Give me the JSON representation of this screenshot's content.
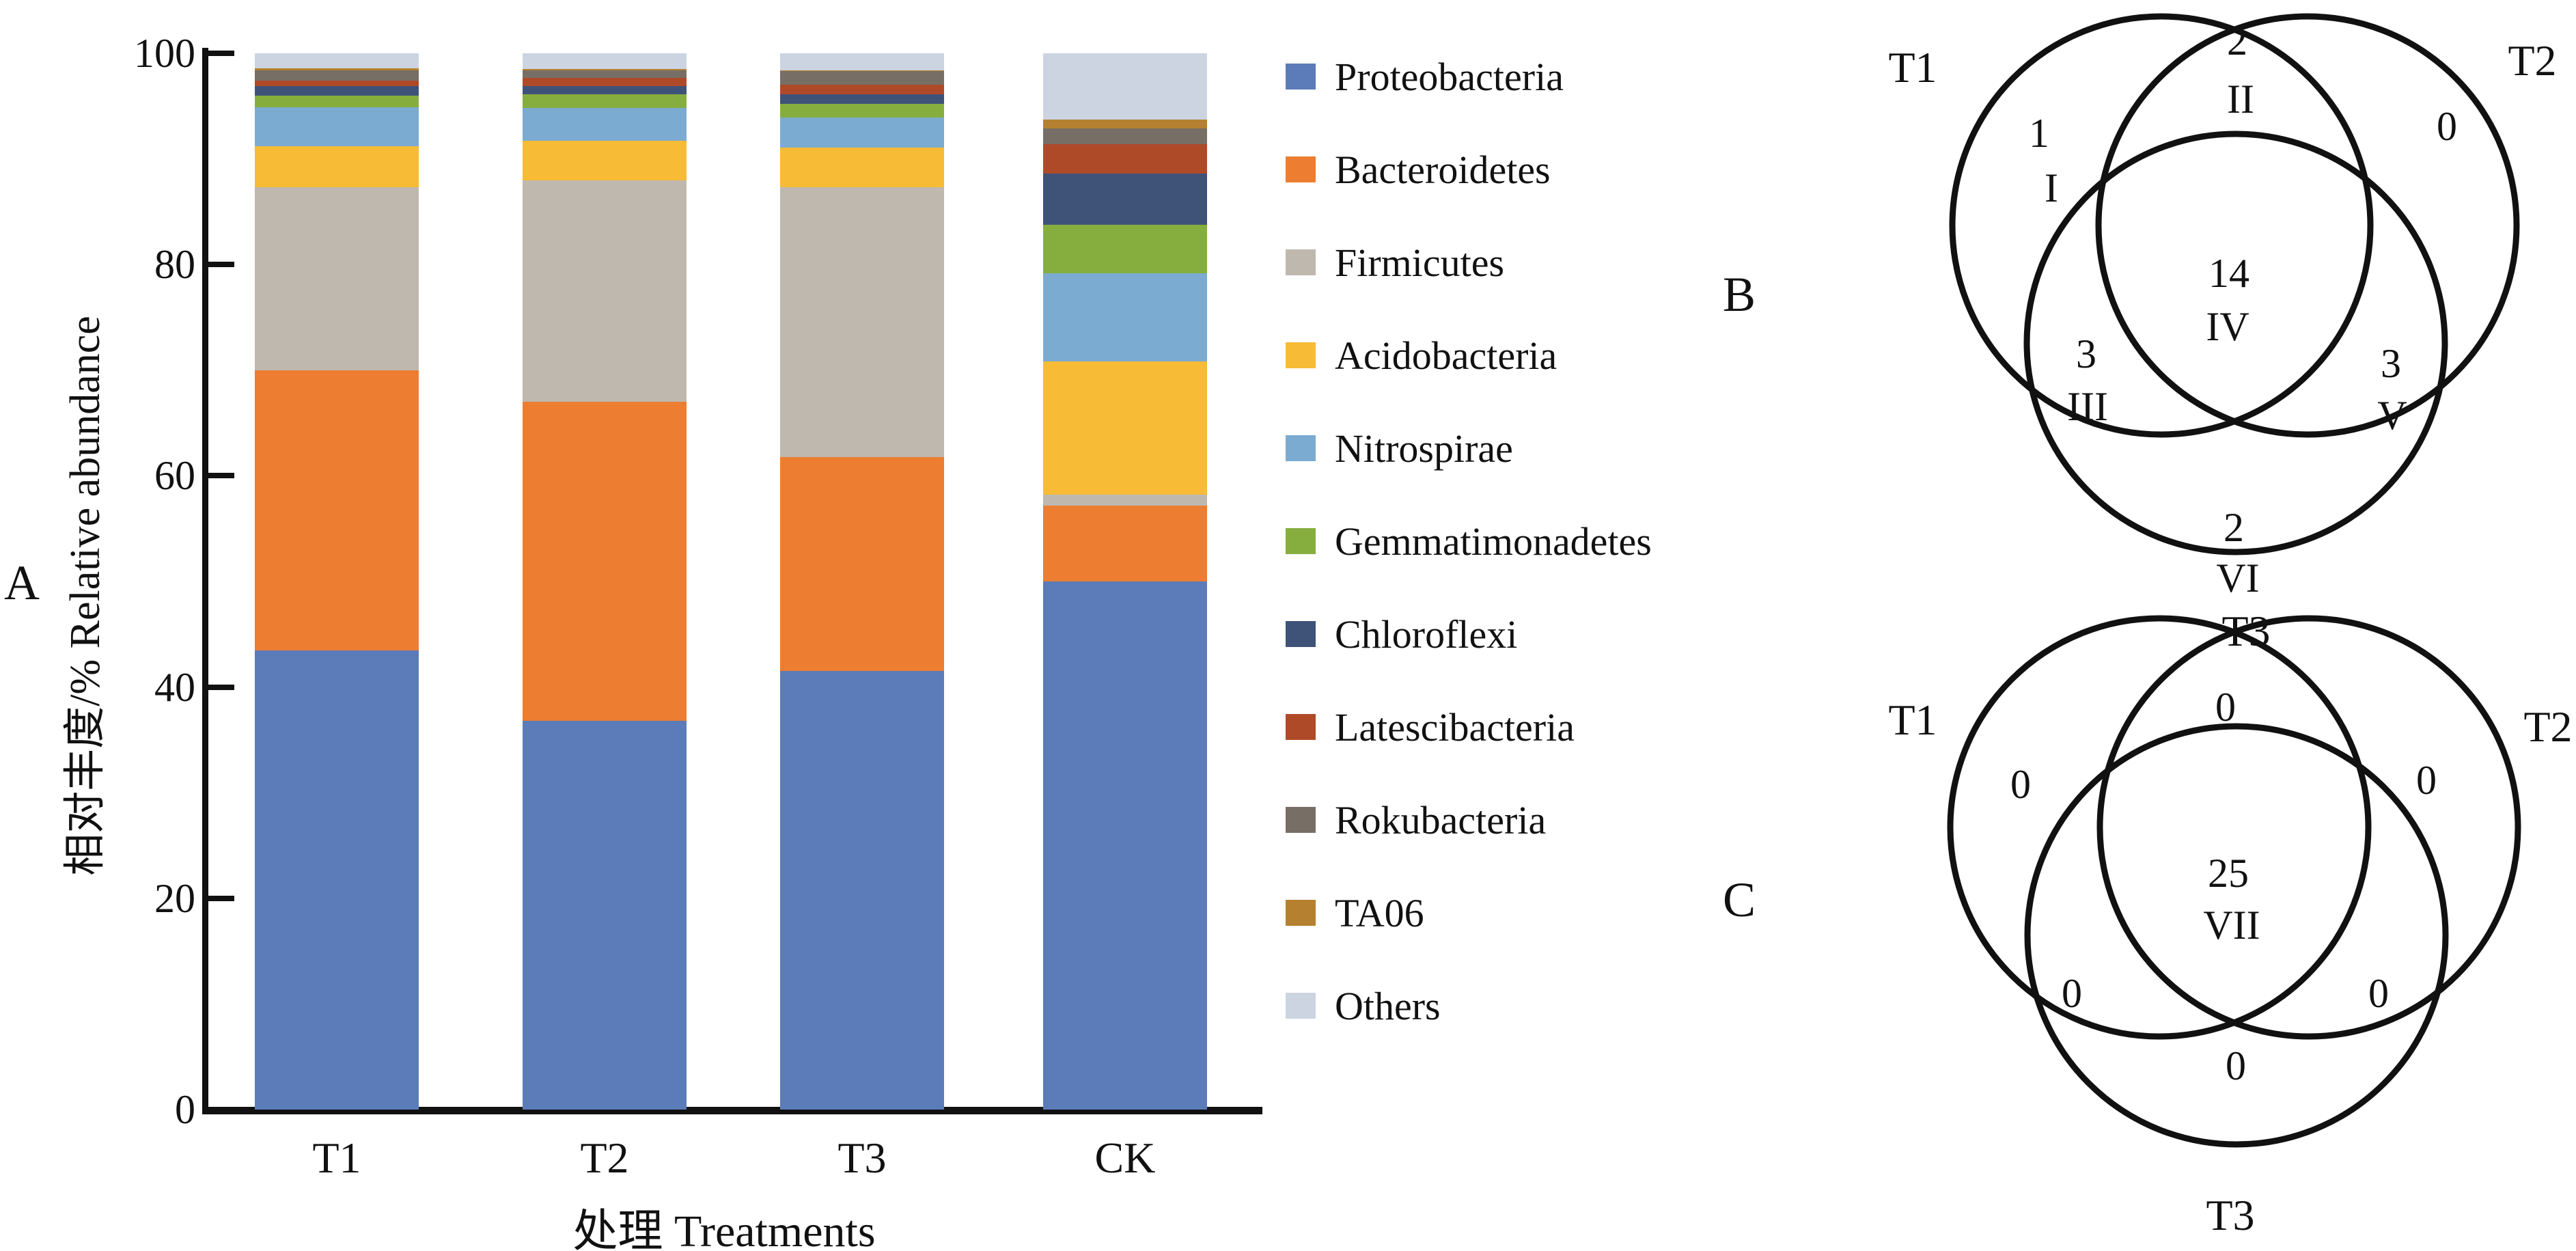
{
  "panels": {
    "a_label": "A",
    "b_label": "B",
    "c_label": "C"
  },
  "bar_chart": {
    "y_axis_label": "相对丰度/% Relative abundance",
    "x_axis_label": "处理 Treatments",
    "y_ticks": [
      0,
      20,
      40,
      60,
      80,
      100
    ],
    "categories": [
      "T1",
      "T2",
      "T3",
      "CK"
    ]
  },
  "legend": {
    "entries": [
      {
        "label": "Proteobacteria",
        "color": "#5b7cb8"
      },
      {
        "label": "Bacteroidetes",
        "color": "#ec7d31"
      },
      {
        "label": "Firmicutes",
        "color": "#bfb8af"
      },
      {
        "label": "Acidobacteria",
        "color": "#f7bb35"
      },
      {
        "label": "Nitrospirae",
        "color": "#7babd1"
      },
      {
        "label": "Gemmatimonadetes",
        "color": "#86ae3e"
      },
      {
        "label": "Chloroflexi",
        "color": "#3f5379"
      },
      {
        "label": "Latescibacteria",
        "color": "#af4a28"
      },
      {
        "label": "Rokubacteria",
        "color": "#776f66"
      },
      {
        "label": "TA06",
        "color": "#b5802f"
      },
      {
        "label": "Others",
        "color": "#ccd4e1"
      }
    ]
  },
  "chart_data": [
    {
      "id": "A",
      "type": "bar",
      "subtype": "stacked-percent",
      "title": "",
      "xlabel": "处理 Treatments",
      "ylabel": "相对丰度/% Relative abundance",
      "categories": [
        "T1",
        "T2",
        "T3",
        "CK"
      ],
      "ylim": [
        0,
        100
      ],
      "grid": false,
      "legend_position": "right",
      "series": [
        {
          "name": "Proteobacteria",
          "color": "#5b7cb8",
          "values": [
            43.5,
            36.8,
            41.5,
            50.0
          ]
        },
        {
          "name": "Bacteroidetes",
          "color": "#ec7d31",
          "values": [
            26.5,
            30.2,
            20.3,
            7.2
          ]
        },
        {
          "name": "Firmicutes",
          "color": "#bfb8af",
          "values": [
            17.3,
            21.0,
            25.5,
            1.0
          ]
        },
        {
          "name": "Acidobacteria",
          "color": "#f7bb35",
          "values": [
            3.9,
            3.7,
            3.8,
            12.6
          ]
        },
        {
          "name": "Nitrospirae",
          "color": "#7babd1",
          "values": [
            3.7,
            3.1,
            2.8,
            8.4
          ]
        },
        {
          "name": "Gemmatimonadetes",
          "color": "#86ae3e",
          "values": [
            1.1,
            1.3,
            1.3,
            4.6
          ]
        },
        {
          "name": "Chloroflexi",
          "color": "#3f5379",
          "values": [
            0.9,
            0.8,
            0.9,
            4.8
          ]
        },
        {
          "name": "Latescibacteria",
          "color": "#af4a28",
          "values": [
            0.5,
            0.8,
            0.9,
            2.8
          ]
        },
        {
          "name": "Rokubacteria",
          "color": "#776f66",
          "values": [
            1.0,
            0.7,
            1.3,
            1.5
          ]
        },
        {
          "name": "TA06",
          "color": "#b5802f",
          "values": [
            0.2,
            0.1,
            0.1,
            0.8
          ]
        },
        {
          "name": "Others",
          "color": "#ccd4e1",
          "values": [
            1.4,
            1.5,
            1.6,
            6.3
          ]
        }
      ]
    },
    {
      "id": "B",
      "type": "venn3",
      "sets": [
        "T1",
        "T2",
        "T3"
      ],
      "regions": {
        "t1_only": {
          "count": "1",
          "numeral": "I"
        },
        "t2_only": {
          "count": "0",
          "numeral": ""
        },
        "t3_only": {
          "count": "2",
          "numeral": "VI"
        },
        "t1_t2": {
          "count": "2",
          "numeral": "II"
        },
        "t1_t3": {
          "count": "3",
          "numeral": "III"
        },
        "t2_t3": {
          "count": "3",
          "numeral": "V"
        },
        "t1_t2_t3": {
          "count": "14",
          "numeral": "IV"
        }
      }
    },
    {
      "id": "C",
      "type": "venn3",
      "sets": [
        "T1",
        "T2",
        "T3"
      ],
      "regions": {
        "t1_only": {
          "count": "0",
          "numeral": ""
        },
        "t2_only": {
          "count": "0",
          "numeral": ""
        },
        "t3_only": {
          "count": "0",
          "numeral": ""
        },
        "t1_t2": {
          "count": "0",
          "numeral": ""
        },
        "t1_t3": {
          "count": "0",
          "numeral": ""
        },
        "t2_t3": {
          "count": "0",
          "numeral": ""
        },
        "t1_t2_t3": {
          "count": "25",
          "numeral": "VII"
        }
      }
    }
  ]
}
